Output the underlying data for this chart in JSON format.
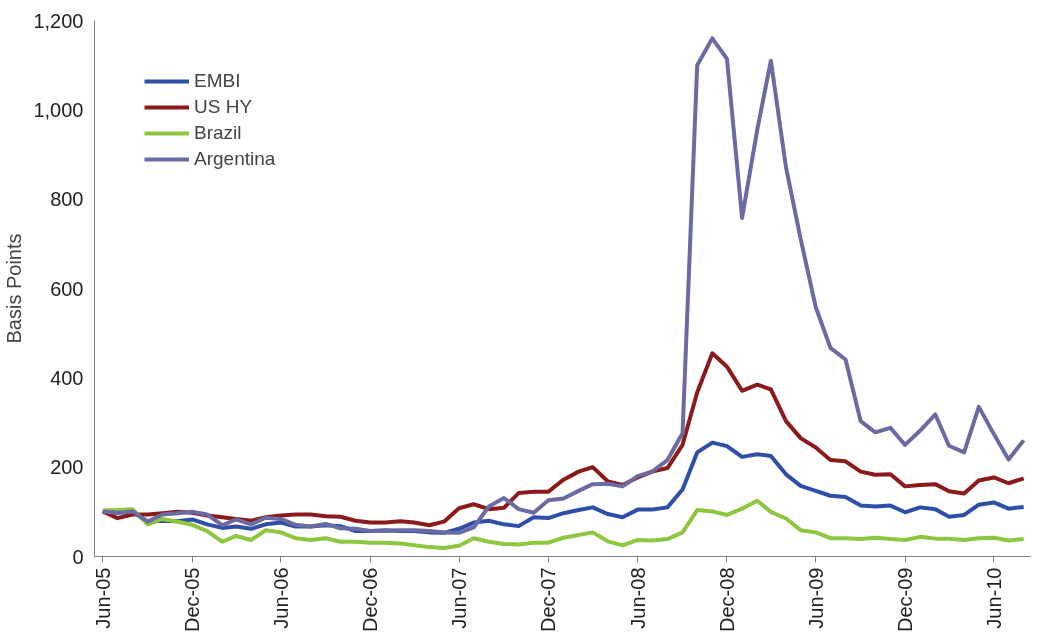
{
  "chart_data": {
    "type": "line",
    "ylabel": "Basis Points",
    "x": [
      "2005-06",
      "2005-07",
      "2005-08",
      "2005-09",
      "2005-10",
      "2005-11",
      "2005-12",
      "2006-01",
      "2006-02",
      "2006-03",
      "2006-04",
      "2006-05",
      "2006-06",
      "2006-07",
      "2006-08",
      "2006-09",
      "2006-10",
      "2006-11",
      "2006-12",
      "2007-01",
      "2007-02",
      "2007-03",
      "2007-04",
      "2007-05",
      "2007-06",
      "2007-07",
      "2007-08",
      "2007-09",
      "2007-10",
      "2007-11",
      "2007-12",
      "2008-01",
      "2008-02",
      "2008-03",
      "2008-04",
      "2008-05",
      "2008-06",
      "2008-07",
      "2008-08",
      "2008-09",
      "2008-10",
      "2008-11",
      "2008-12",
      "2009-01",
      "2009-02",
      "2009-03",
      "2009-04",
      "2009-05",
      "2009-06",
      "2009-07",
      "2009-08",
      "2009-09",
      "2009-10",
      "2009-11",
      "2009-12",
      "2010-01",
      "2010-02",
      "2010-03",
      "2010-04",
      "2010-05",
      "2010-06",
      "2010-07",
      "2010-08"
    ],
    "series": [
      {
        "name": "EMBI",
        "color": "#2e4fa8",
        "values": [
          101,
          98,
          100,
          78,
          80,
          79,
          83,
          72,
          64,
          67,
          62,
          72,
          76,
          67,
          67,
          70,
          68,
          57,
          57,
          59,
          57,
          57,
          54,
          53,
          62,
          76,
          80,
          72,
          68,
          88,
          86,
          97,
          104,
          110,
          95,
          88,
          105,
          105,
          110,
          150,
          233,
          255,
          247,
          223,
          229,
          225,
          184,
          158,
          147,
          136,
          133,
          114,
          112,
          114,
          99,
          110,
          106,
          89,
          93,
          116,
          121,
          107,
          111
        ]
      },
      {
        "name": "US HY",
        "color": "#8b1a1a",
        "values": [
          101,
          86,
          94,
          94,
          97,
          100,
          98,
          92,
          88,
          84,
          80,
          88,
          92,
          94,
          94,
          90,
          89,
          80,
          76,
          76,
          79,
          76,
          70,
          78,
          108,
          117,
          106,
          109,
          142,
          145,
          145,
          172,
          190,
          200,
          168,
          160,
          177,
          190,
          198,
          250,
          367,
          455,
          425,
          371,
          385,
          374,
          303,
          265,
          244,
          216,
          213,
          190,
          183,
          184,
          157,
          160,
          162,
          146,
          141,
          170,
          177,
          164,
          175
        ]
      },
      {
        "name": "Brazil",
        "color": "#8dc63f",
        "values": [
          103,
          104,
          106,
          72,
          84,
          78,
          71,
          57,
          33,
          46,
          37,
          59,
          54,
          41,
          37,
          41,
          33,
          33,
          31,
          31,
          29,
          25,
          21,
          19,
          24,
          41,
          33,
          28,
          27,
          31,
          31,
          42,
          48,
          54,
          34,
          25,
          37,
          36,
          39,
          54,
          104,
          101,
          93,
          107,
          125,
          100,
          85,
          59,
          54,
          41,
          41,
          39,
          42,
          39,
          37,
          44,
          40,
          40,
          37,
          41,
          42,
          36,
          39
        ]
      },
      {
        "name": "Argentina",
        "color": "#6b6ba3",
        "values": [
          101,
          98,
          101,
          78,
          94,
          97,
          100,
          94,
          70,
          83,
          72,
          87,
          84,
          71,
          67,
          73,
          63,
          62,
          57,
          57,
          59,
          59,
          57,
          54,
          53,
          65,
          112,
          131,
          106,
          98,
          126,
          130,
          147,
          162,
          163,
          157,
          180,
          190,
          216,
          276,
          1100,
          1160,
          1114,
          758,
          955,
          1110,
          871,
          711,
          558,
          467,
          441,
          303,
          278,
          288,
          250,
          282,
          318,
          248,
          233,
          335,
          274,
          217,
          260
        ]
      }
    ],
    "xlim": [
      "2005-05-15",
      "2010-08-15"
    ],
    "xticks": [
      {
        "value": "2005-06",
        "label": "Jun-05"
      },
      {
        "value": "2005-12",
        "label": "Dec-05"
      },
      {
        "value": "2006-06",
        "label": "Jun-06"
      },
      {
        "value": "2006-12",
        "label": "Dec-06"
      },
      {
        "value": "2007-06",
        "label": "Jun-07"
      },
      {
        "value": "2007-12",
        "label": "Dec-07"
      },
      {
        "value": "2008-06",
        "label": "Jun-08"
      },
      {
        "value": "2008-12",
        "label": "Dec-08"
      },
      {
        "value": "2009-06",
        "label": "Jun-09"
      },
      {
        "value": "2009-12",
        "label": "Dec-09"
      },
      {
        "value": "2010-06",
        "label": "Jun-10"
      }
    ],
    "ylim": [
      0,
      1200
    ],
    "yticks": [
      0,
      {
        "value": 200,
        "label": "200"
      },
      {
        "value": 400,
        "label": "400"
      },
      {
        "value": 600,
        "label": "600"
      },
      {
        "value": 800,
        "label": "800"
      },
      {
        "value": 1000,
        "label": "1,000"
      },
      {
        "value": 1200,
        "label": "1,200"
      }
    ],
    "legend": "top left",
    "grid": false,
    "marker": "none",
    "line_style": "solid"
  }
}
